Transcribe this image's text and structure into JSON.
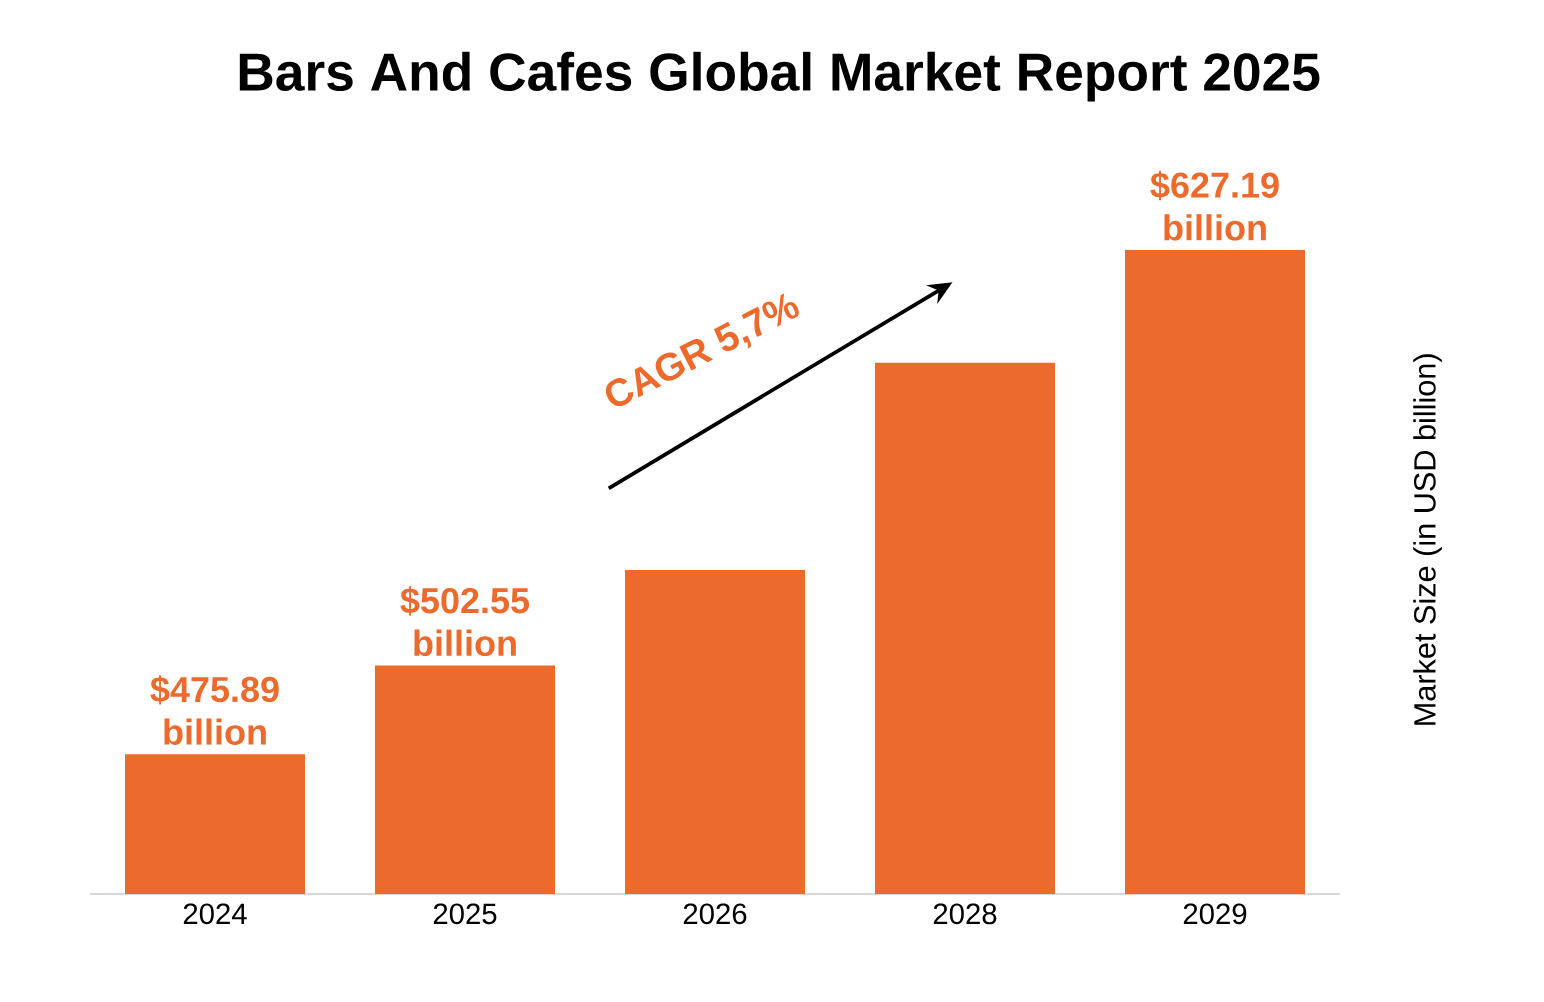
{
  "chart_data": {
    "type": "bar",
    "title": "Bars And Cafes Global Market Report 2025",
    "ylabel": "Market Size (in USD billion)",
    "categories": [
      "2024",
      "2025",
      "2026",
      "2028",
      "2029"
    ],
    "values": [
      475.89,
      502.55,
      531.2,
      593.4,
      627.19
    ],
    "value_labels": [
      "$475.89 billion",
      "$502.55 billion",
      null,
      null,
      "$627.19 billion"
    ],
    "ylim": [
      434,
      627.19
    ],
    "color": "#ec6a2c",
    "annotations": [
      "CAGR 5,7%"
    ]
  }
}
